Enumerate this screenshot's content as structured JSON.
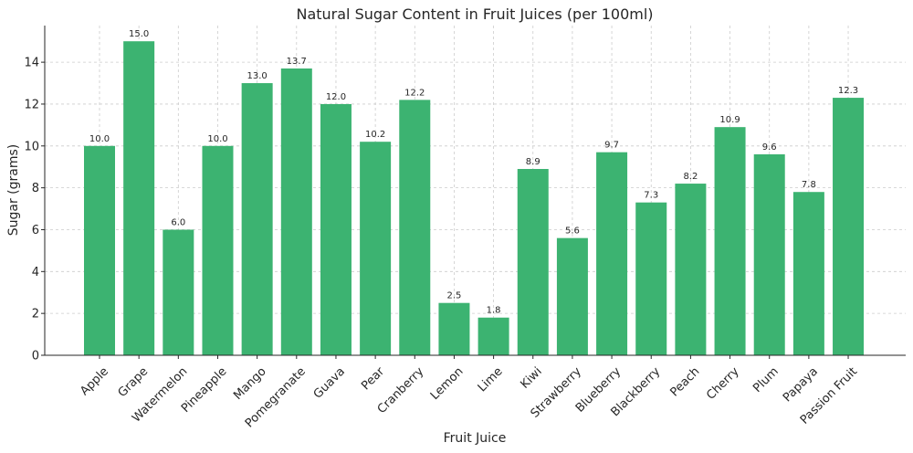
{
  "chart_data": {
    "type": "bar",
    "title": "Natural Sugar Content in Fruit Juices (per 100ml)",
    "xlabel": "Fruit Juice",
    "ylabel": "Sugar (grams)",
    "categories": [
      "Apple",
      "Grape",
      "Watermelon",
      "Pineapple",
      "Mango",
      "Pomegranate",
      "Guava",
      "Pear",
      "Cranberry",
      "Lemon",
      "Lime",
      "Kiwi",
      "Strawberry",
      "Blueberry",
      "Blackberry",
      "Peach",
      "Cherry",
      "Plum",
      "Papaya",
      "Passion Fruit"
    ],
    "values": [
      10.0,
      15.0,
      6.0,
      10.0,
      13.0,
      13.7,
      12.0,
      10.2,
      12.2,
      2.5,
      1.8,
      8.9,
      5.6,
      9.7,
      7.3,
      8.2,
      10.9,
      9.6,
      7.8,
      12.3
    ],
    "data_labels": [
      "10.0",
      "15.0",
      "6.0",
      "10.0",
      "13.0",
      "13.7",
      "12.0",
      "10.2",
      "12.2",
      "2.5",
      "1.8",
      "8.9",
      "5.6",
      "9.7",
      "7.3",
      "8.2",
      "10.9",
      "9.6",
      "7.8",
      "12.3"
    ],
    "yticks": [
      0,
      2,
      4,
      6,
      8,
      10,
      12,
      14
    ],
    "ylim": [
      0,
      15.75
    ],
    "grid": true,
    "bar_color": "#3cb371"
  }
}
